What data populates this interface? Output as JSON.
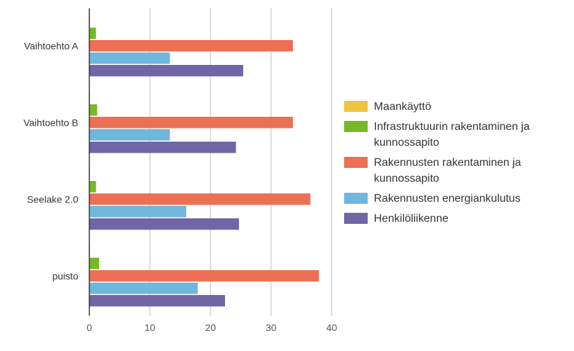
{
  "chart_data": {
    "type": "bar",
    "orientation": "horizontal",
    "categories": [
      "Vaihtoehto A",
      "Vaihtoehto B",
      "Seelake 2.0",
      "puisto"
    ],
    "series": [
      {
        "name": "Maankäyttö",
        "color": "#f0c43e",
        "values": [
          0.1,
          0.1,
          0.1,
          0.1
        ]
      },
      {
        "name": "Infrastruktuurin rakentaminen ja kunnossapito",
        "color": "#77b82a",
        "values": [
          1.1,
          1.3,
          1.1,
          1.6
        ]
      },
      {
        "name": "Rakennusten rakentaminen ja kunnossapito",
        "color": "#ec7053",
        "values": [
          33.6,
          33.6,
          36.5,
          37.9
        ]
      },
      {
        "name": "Rakennusten energiankulutus",
        "color": "#6fb7dd",
        "values": [
          13.3,
          13.3,
          16.0,
          17.9
        ]
      },
      {
        "name": "Henkilöliikenne",
        "color": "#7165a6",
        "values": [
          25.4,
          24.2,
          24.7,
          22.4
        ]
      }
    ],
    "xticks": [
      0,
      10,
      20,
      30,
      40
    ],
    "xlim": [
      0,
      40
    ],
    "title": "",
    "xlabel": "",
    "ylabel": "",
    "grid": true,
    "legend_position": "right"
  }
}
